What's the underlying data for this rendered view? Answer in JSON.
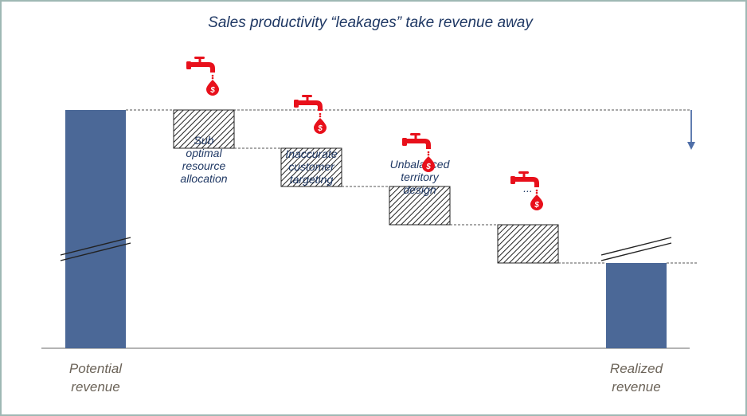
{
  "chart_data": {
    "type": "bar",
    "title": "Sales productivity “leakages” take revenue away",
    "categories": [
      "Potential revenue",
      "Sub optimal resource allocation",
      "Inaccurate customer targeting",
      "Unbalanced territory design",
      "...",
      "Realized revenue"
    ],
    "bars": [
      {
        "label_lines": [
          "Potential",
          "revenue"
        ],
        "role": "total",
        "value": 100
      },
      {
        "label_lines": [
          "Sub",
          "optimal",
          "resource",
          "allocation"
        ],
        "role": "leakage",
        "value": -4
      },
      {
        "label_lines": [
          "Inaccurate",
          "customer",
          "targeting"
        ],
        "role": "leakage",
        "value": -4
      },
      {
        "label_lines": [
          "Unbalanced",
          "territory",
          "design"
        ],
        "role": "leakage",
        "value": -4
      },
      {
        "label_lines": [
          "..."
        ],
        "role": "leakage",
        "value": -4
      },
      {
        "label_lines": [
          "Realized",
          "revenue"
        ],
        "role": "total",
        "value": 84
      }
    ],
    "axis_break": true,
    "grid": false,
    "legend": "none",
    "colors": {
      "total_bar": "#4b6897",
      "leakage_fill": "hatched",
      "faucet": "#e8101b",
      "title": "#1f3864",
      "axis_label": "#6b6358",
      "category_label": "#1f3864",
      "frame": "#9fb8b4",
      "arrow": "#4f6fa8"
    },
    "icons": [
      "faucet-icon",
      "money-drop-icon"
    ]
  }
}
